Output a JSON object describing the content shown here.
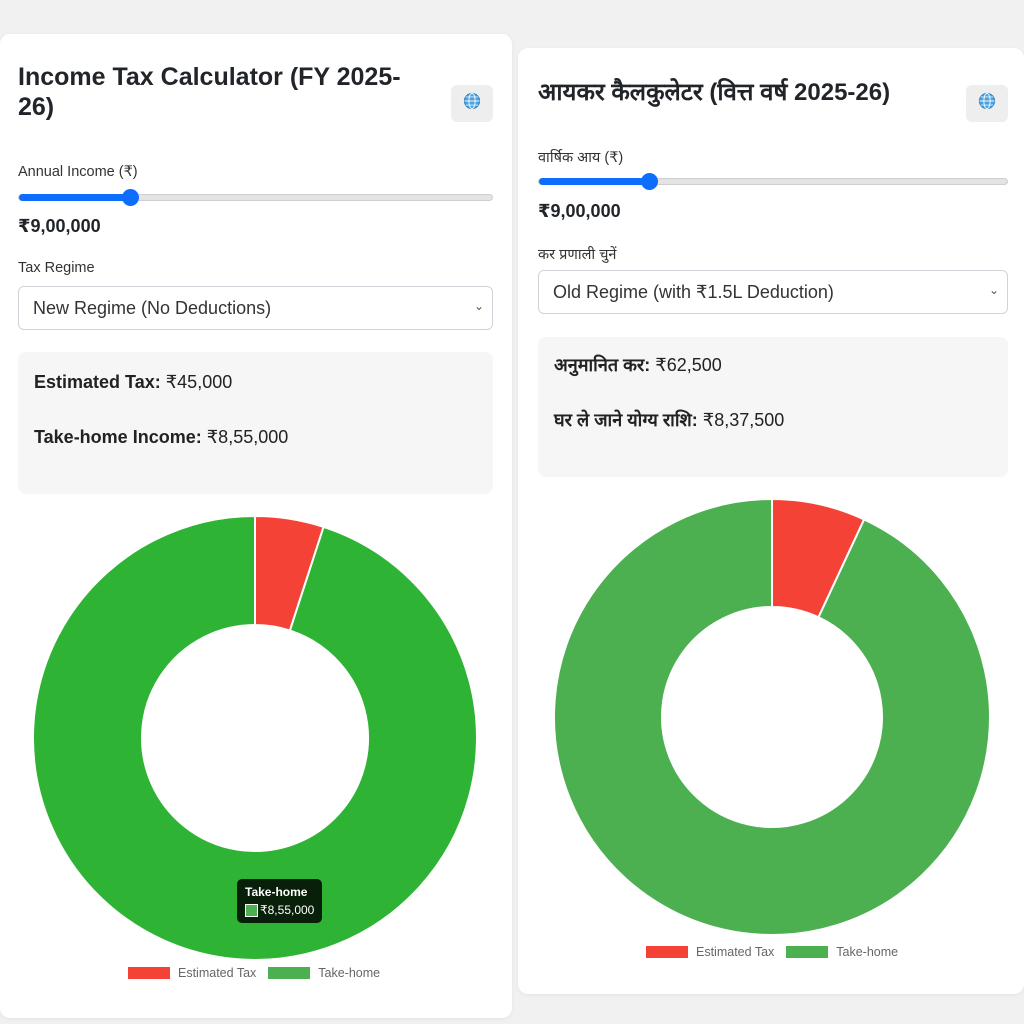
{
  "english": {
    "title_line1": "Income Tax Calculator (FY 2025-",
    "title_line2": "26)",
    "income_label": "Annual Income (₹)",
    "income_value": "₹9,00,000",
    "slider_fraction": 0.235,
    "regime_label": "Tax Regime",
    "regime_selected": "New Regime (No Deductions)",
    "tax_label": "Estimated Tax:",
    "tax_value": "₹45,000",
    "takehome_label": "Take-home Income:",
    "takehome_value": "₹8,55,000",
    "tooltip": {
      "title": "Take-home",
      "value": "₹8,55,000"
    }
  },
  "hindi": {
    "title": "आयकर कैलकुलेटर (वित्त वर्ष 2025-26)",
    "income_label": "वार्षिक आय (₹)",
    "income_value": "₹9,00,000",
    "slider_fraction": 0.235,
    "regime_label": "कर प्रणाली चुनें",
    "regime_selected": "Old Regime (with ₹1.5L Deduction)",
    "tax_label": "अनुमानित कर:",
    "tax_value": "₹62,500",
    "takehome_label": "घर ले जाने योग्य राशि:",
    "takehome_value": "₹8,37,500"
  },
  "chart_data": [
    {
      "type": "pie",
      "categories": [
        "Estimated Tax",
        "Take-home"
      ],
      "values": [
        45000,
        855000
      ],
      "colors": [
        "#f44336",
        "#2eb335"
      ],
      "legend": "bottom"
    },
    {
      "type": "pie",
      "categories": [
        "Estimated Tax",
        "Take-home"
      ],
      "values": [
        62500,
        837500
      ],
      "colors": [
        "#f44336",
        "#4caf50"
      ],
      "legend": "bottom"
    }
  ],
  "icons": {
    "language_toggle": "globe-icon",
    "select_arrow": "chevron-down-icon"
  }
}
